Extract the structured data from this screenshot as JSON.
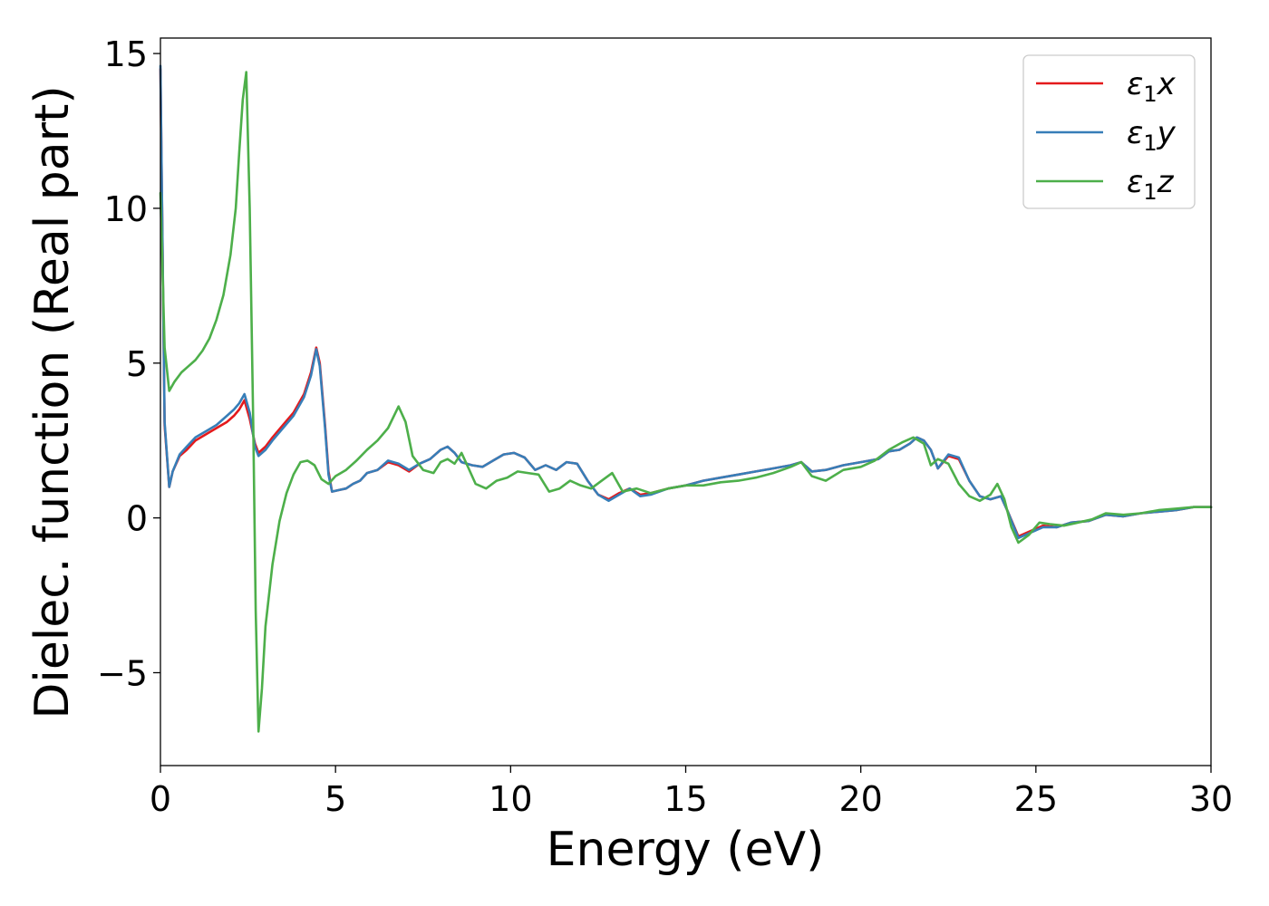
{
  "chart_data": {
    "type": "line",
    "title": "",
    "xlabel": "Energy (eV)",
    "ylabel": "Dielec. function (Real part)",
    "xlim": [
      0,
      30
    ],
    "ylim": [
      -8,
      15.5
    ],
    "xticks": [
      0,
      5,
      10,
      15,
      20,
      25,
      30
    ],
    "xtick_labels": [
      "0",
      "5",
      "10",
      "15",
      "20",
      "25",
      "30"
    ],
    "yticks": [
      -5,
      0,
      5,
      10,
      15
    ],
    "ytick_labels": [
      "−5",
      "0",
      "5",
      "10",
      "15"
    ],
    "grid": false,
    "legend_position": "top-right",
    "series": [
      {
        "name": "ε1x",
        "label_base": "ε",
        "label_sub": "1",
        "label_var": "x",
        "color": "#e41a1c",
        "x": [
          0.0,
          0.12,
          0.25,
          0.35,
          0.55,
          0.75,
          1.0,
          1.3,
          1.6,
          1.9,
          2.1,
          2.25,
          2.4,
          2.55,
          2.7,
          2.8,
          3.0,
          3.2,
          3.5,
          3.8,
          4.1,
          4.3,
          4.45,
          4.55,
          4.7,
          4.8,
          4.9,
          5.1,
          5.3,
          5.5,
          5.7,
          5.9,
          6.2,
          6.5,
          6.8,
          7.1,
          7.4,
          7.7,
          8.0,
          8.2,
          8.4,
          8.6,
          8.9,
          9.2,
          9.5,
          9.8,
          10.1,
          10.4,
          10.7,
          11.0,
          11.3,
          11.6,
          11.9,
          12.2,
          12.5,
          12.8,
          13.1,
          13.4,
          13.7,
          14.0,
          14.5,
          15.0,
          15.5,
          16.0,
          16.5,
          17.0,
          17.5,
          18.0,
          18.3,
          18.6,
          19.0,
          19.5,
          20.0,
          20.5,
          20.8,
          21.1,
          21.4,
          21.6,
          21.8,
          22.0,
          22.2,
          22.5,
          22.8,
          23.1,
          23.4,
          23.7,
          24.0,
          24.2,
          24.5,
          24.8,
          25.2,
          25.6,
          26.0,
          26.5,
          27.0,
          27.5,
          28.0,
          28.5,
          29.0,
          29.5,
          30.0
        ],
        "y": [
          14.5,
          3.0,
          1.0,
          1.5,
          2.0,
          2.2,
          2.5,
          2.7,
          2.9,
          3.1,
          3.3,
          3.5,
          3.8,
          3.2,
          2.4,
          2.1,
          2.3,
          2.6,
          3.0,
          3.4,
          4.0,
          4.7,
          5.5,
          5.0,
          3.0,
          1.5,
          0.85,
          0.9,
          0.95,
          1.1,
          1.2,
          1.45,
          1.55,
          1.8,
          1.7,
          1.5,
          1.75,
          1.9,
          2.2,
          2.3,
          2.1,
          1.8,
          1.7,
          1.65,
          1.85,
          2.05,
          2.1,
          1.95,
          1.55,
          1.7,
          1.55,
          1.8,
          1.75,
          1.2,
          0.75,
          0.6,
          0.8,
          0.95,
          0.75,
          0.8,
          0.95,
          1.05,
          1.2,
          1.3,
          1.4,
          1.5,
          1.6,
          1.7,
          1.8,
          1.5,
          1.55,
          1.7,
          1.8,
          1.9,
          2.15,
          2.2,
          2.4,
          2.6,
          2.5,
          2.2,
          1.6,
          2.0,
          1.9,
          1.2,
          0.7,
          0.6,
          0.7,
          0.2,
          -0.6,
          -0.45,
          -0.25,
          -0.3,
          -0.15,
          -0.1,
          0.1,
          0.05,
          0.15,
          0.2,
          0.25,
          0.35,
          0.35
        ]
      },
      {
        "name": "ε1y",
        "label_base": "ε",
        "label_sub": "1",
        "label_var": "y",
        "color": "#377eb8",
        "x": [
          0.0,
          0.12,
          0.25,
          0.35,
          0.55,
          0.75,
          1.0,
          1.3,
          1.6,
          1.9,
          2.1,
          2.25,
          2.4,
          2.55,
          2.7,
          2.8,
          3.0,
          3.2,
          3.5,
          3.8,
          4.1,
          4.3,
          4.45,
          4.55,
          4.7,
          4.8,
          4.9,
          5.1,
          5.3,
          5.5,
          5.7,
          5.9,
          6.2,
          6.5,
          6.8,
          7.1,
          7.4,
          7.7,
          8.0,
          8.2,
          8.4,
          8.6,
          8.9,
          9.2,
          9.5,
          9.8,
          10.1,
          10.4,
          10.7,
          11.0,
          11.3,
          11.6,
          11.9,
          12.2,
          12.5,
          12.8,
          13.1,
          13.4,
          13.7,
          14.0,
          14.5,
          15.0,
          15.5,
          16.0,
          16.5,
          17.0,
          17.5,
          18.0,
          18.3,
          18.6,
          19.0,
          19.5,
          20.0,
          20.5,
          20.8,
          21.1,
          21.4,
          21.6,
          21.8,
          22.0,
          22.2,
          22.5,
          22.8,
          23.1,
          23.4,
          23.7,
          24.0,
          24.2,
          24.5,
          24.8,
          25.2,
          25.6,
          26.0,
          26.5,
          27.0,
          27.5,
          28.0,
          28.5,
          29.0,
          29.5,
          30.0
        ],
        "y": [
          14.6,
          3.1,
          1.0,
          1.5,
          2.05,
          2.3,
          2.6,
          2.8,
          3.0,
          3.3,
          3.5,
          3.7,
          4.0,
          3.4,
          2.3,
          2.0,
          2.2,
          2.5,
          2.9,
          3.3,
          3.9,
          4.6,
          5.45,
          4.9,
          2.9,
          1.4,
          0.85,
          0.9,
          0.95,
          1.1,
          1.2,
          1.45,
          1.55,
          1.85,
          1.75,
          1.55,
          1.75,
          1.9,
          2.2,
          2.3,
          2.1,
          1.8,
          1.7,
          1.65,
          1.85,
          2.05,
          2.1,
          1.95,
          1.55,
          1.7,
          1.55,
          1.8,
          1.75,
          1.2,
          0.75,
          0.55,
          0.75,
          0.95,
          0.7,
          0.75,
          0.95,
          1.05,
          1.2,
          1.3,
          1.4,
          1.5,
          1.6,
          1.7,
          1.8,
          1.5,
          1.55,
          1.7,
          1.8,
          1.9,
          2.15,
          2.2,
          2.4,
          2.6,
          2.5,
          2.2,
          1.6,
          2.05,
          1.95,
          1.2,
          0.7,
          0.6,
          0.7,
          0.2,
          -0.65,
          -0.5,
          -0.3,
          -0.3,
          -0.15,
          -0.1,
          0.1,
          0.05,
          0.15,
          0.2,
          0.25,
          0.35,
          0.35
        ]
      },
      {
        "name": "ε1z",
        "label_base": "ε",
        "label_sub": "1",
        "label_var": "z",
        "color": "#4daf4a",
        "x": [
          0.0,
          0.12,
          0.25,
          0.4,
          0.6,
          0.8,
          1.0,
          1.2,
          1.4,
          1.6,
          1.8,
          2.0,
          2.15,
          2.25,
          2.35,
          2.45,
          2.55,
          2.65,
          2.72,
          2.8,
          2.9,
          3.0,
          3.2,
          3.4,
          3.6,
          3.8,
          4.0,
          4.2,
          4.4,
          4.6,
          4.8,
          5.0,
          5.3,
          5.6,
          5.9,
          6.2,
          6.5,
          6.8,
          7.0,
          7.2,
          7.5,
          7.8,
          8.0,
          8.2,
          8.4,
          8.6,
          8.8,
          9.0,
          9.3,
          9.6,
          9.9,
          10.2,
          10.5,
          10.8,
          11.1,
          11.4,
          11.7,
          12.0,
          12.3,
          12.6,
          12.9,
          13.2,
          13.6,
          14.0,
          14.5,
          15.0,
          15.5,
          16.0,
          16.5,
          17.0,
          17.5,
          18.0,
          18.3,
          18.6,
          19.0,
          19.5,
          20.0,
          20.4,
          20.8,
          21.2,
          21.5,
          21.8,
          22.0,
          22.2,
          22.5,
          22.8,
          23.1,
          23.4,
          23.7,
          23.9,
          24.1,
          24.3,
          24.5,
          24.8,
          25.1,
          25.4,
          25.8,
          26.2,
          26.6,
          27.0,
          27.5,
          28.0,
          28.5,
          29.0,
          29.5,
          30.0
        ],
        "y": [
          10.5,
          5.5,
          4.1,
          4.4,
          4.7,
          4.9,
          5.1,
          5.4,
          5.8,
          6.4,
          7.2,
          8.5,
          10.0,
          11.8,
          13.5,
          14.4,
          10.0,
          3.0,
          -3.0,
          -6.9,
          -5.5,
          -3.5,
          -1.5,
          -0.1,
          0.8,
          1.4,
          1.8,
          1.85,
          1.7,
          1.25,
          1.1,
          1.35,
          1.55,
          1.85,
          2.2,
          2.5,
          2.9,
          3.6,
          3.1,
          2.0,
          1.55,
          1.45,
          1.8,
          1.9,
          1.75,
          2.1,
          1.6,
          1.1,
          0.95,
          1.2,
          1.3,
          1.5,
          1.45,
          1.4,
          0.85,
          0.95,
          1.2,
          1.05,
          0.95,
          1.2,
          1.45,
          0.85,
          0.95,
          0.8,
          0.95,
          1.05,
          1.05,
          1.15,
          1.2,
          1.3,
          1.45,
          1.65,
          1.8,
          1.35,
          1.2,
          1.55,
          1.65,
          1.85,
          2.2,
          2.45,
          2.6,
          2.4,
          1.7,
          1.9,
          1.75,
          1.1,
          0.7,
          0.55,
          0.75,
          1.1,
          0.6,
          -0.3,
          -0.8,
          -0.55,
          -0.15,
          -0.2,
          -0.25,
          -0.15,
          -0.05,
          0.15,
          0.1,
          0.15,
          0.25,
          0.3,
          0.35,
          0.35
        ]
      }
    ]
  }
}
